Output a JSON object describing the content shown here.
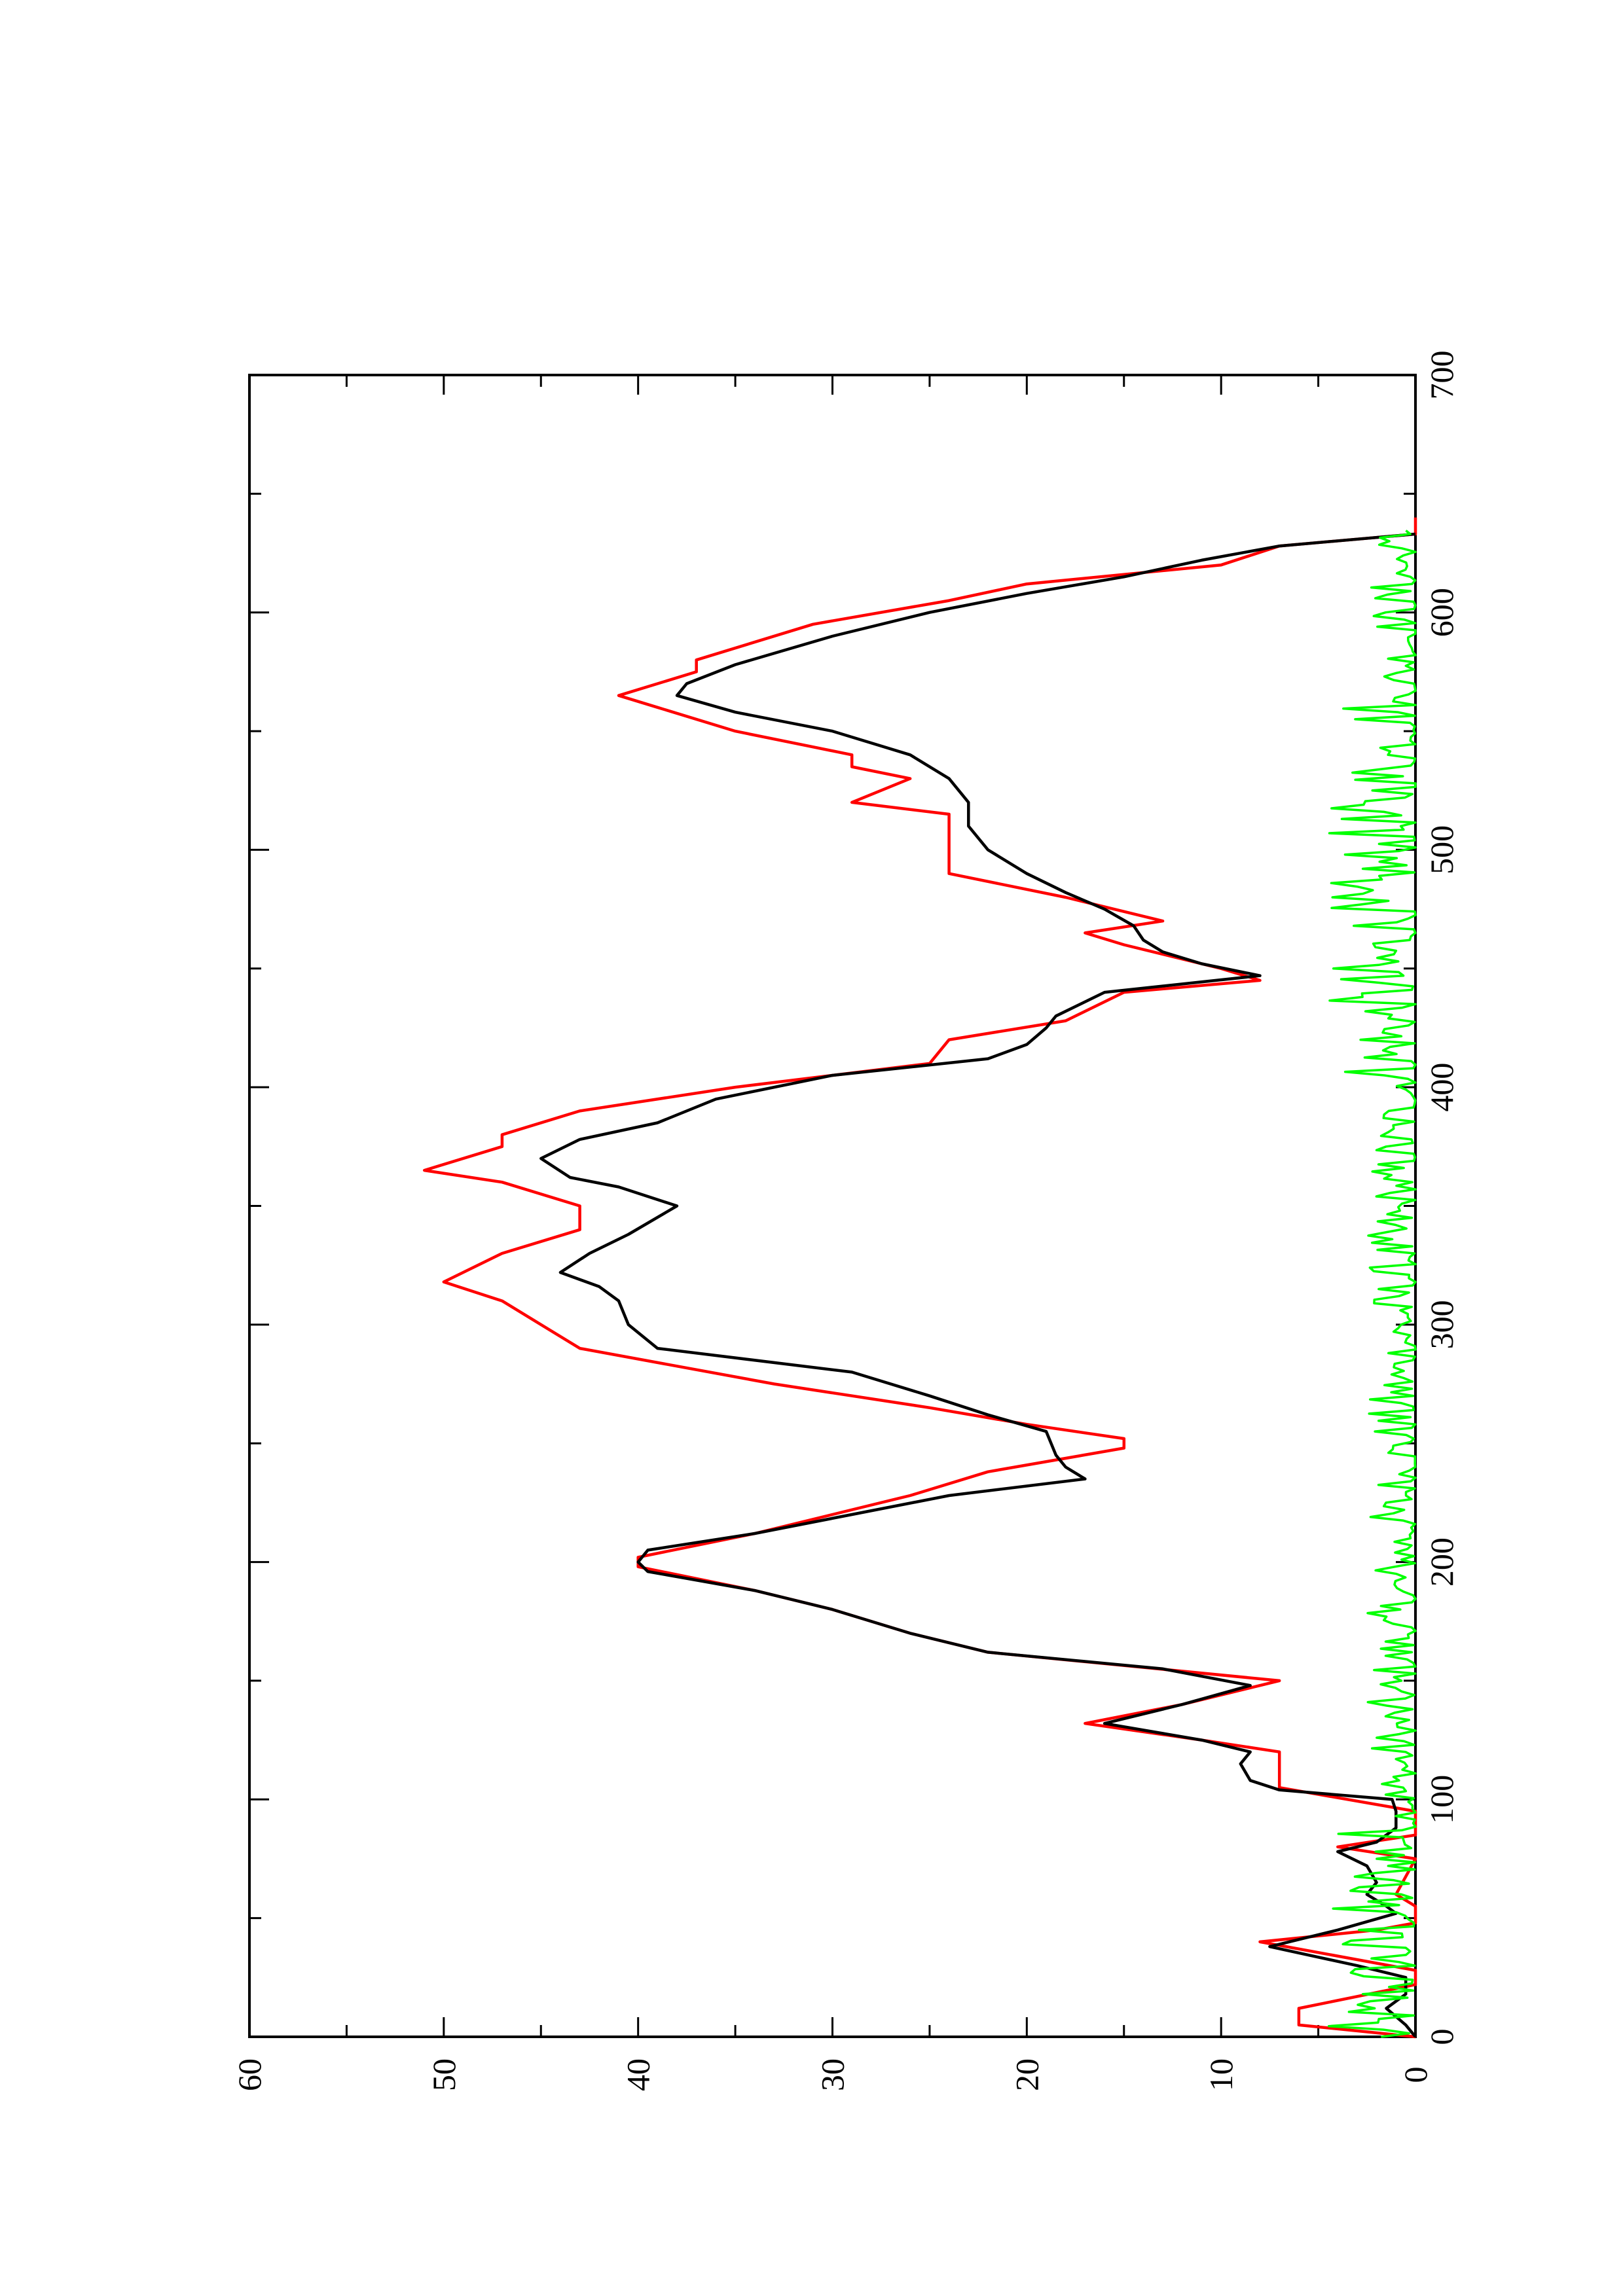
{
  "chart_data": {
    "type": "line",
    "orientation": "rotated 90 degrees counter-clockwise",
    "xlim": [
      0,
      700
    ],
    "ylim": [
      0,
      60
    ],
    "x_ticks": [
      "0",
      "100",
      "200",
      "300",
      "400",
      "500",
      "600",
      "700"
    ],
    "y_ticks": [
      "0",
      "10",
      "20",
      "30",
      "40",
      "50",
      "60"
    ],
    "grid": false,
    "legend": "none",
    "series": [
      {
        "color": "#ff0000",
        "style": "step-line",
        "points": [
          [
            0,
            0
          ],
          [
            5,
            6
          ],
          [
            12,
            6
          ],
          [
            22,
            0
          ],
          [
            28,
            0
          ],
          [
            40,
            8
          ],
          [
            45,
            2
          ],
          [
            48,
            0
          ],
          [
            55,
            0
          ],
          [
            60,
            1
          ],
          [
            75,
            0
          ],
          [
            80,
            4
          ],
          [
            85,
            0
          ],
          [
            95,
            0
          ],
          [
            105,
            7
          ],
          [
            120,
            7
          ],
          [
            125,
            11
          ],
          [
            132,
            17
          ],
          [
            140,
            12
          ],
          [
            150,
            7
          ],
          [
            162,
            22
          ],
          [
            170,
            26
          ],
          [
            180,
            30
          ],
          [
            188,
            34
          ],
          [
            198,
            40
          ],
          [
            202,
            40
          ],
          [
            212,
            34
          ],
          [
            220,
            30
          ],
          [
            228,
            26
          ],
          [
            238,
            22
          ],
          [
            248,
            15
          ],
          [
            252,
            15
          ],
          [
            258,
            20
          ],
          [
            265,
            25
          ],
          [
            275,
            33
          ],
          [
            290,
            43
          ],
          [
            310,
            47
          ],
          [
            318,
            50
          ],
          [
            330,
            47
          ],
          [
            340,
            43
          ],
          [
            350,
            43
          ],
          [
            360,
            47
          ],
          [
            365,
            51
          ],
          [
            375,
            47
          ],
          [
            380,
            47
          ],
          [
            390,
            43
          ],
          [
            400,
            35
          ],
          [
            410,
            25
          ],
          [
            420,
            24
          ],
          [
            428,
            18
          ],
          [
            440,
            15
          ],
          [
            445,
            8
          ],
          [
            450,
            10
          ],
          [
            460,
            15
          ],
          [
            465,
            17
          ],
          [
            470,
            13
          ],
          [
            480,
            18
          ],
          [
            490,
            24
          ],
          [
            515,
            24
          ],
          [
            520,
            29
          ],
          [
            530,
            26
          ],
          [
            535,
            29
          ],
          [
            540,
            29
          ],
          [
            550,
            35
          ],
          [
            560,
            39
          ],
          [
            565,
            41
          ],
          [
            575,
            37
          ],
          [
            580,
            37
          ],
          [
            595,
            31
          ],
          [
            605,
            24
          ],
          [
            612,
            20
          ],
          [
            620,
            10
          ],
          [
            628,
            7
          ],
          [
            633,
            0
          ],
          [
            640,
            0
          ]
        ]
      },
      {
        "color": "#000000",
        "style": "line",
        "points": [
          [
            0,
            0
          ],
          [
            5,
            0.5
          ],
          [
            12,
            1.5
          ],
          [
            18,
            0.5
          ],
          [
            25,
            0.5
          ],
          [
            30,
            3
          ],
          [
            38,
            7.5
          ],
          [
            45,
            4
          ],
          [
            52,
            1
          ],
          [
            55,
            1.5
          ],
          [
            60,
            2.5
          ],
          [
            65,
            2
          ],
          [
            72,
            2.5
          ],
          [
            78,
            4
          ],
          [
            82,
            2
          ],
          [
            88,
            1
          ],
          [
            95,
            1
          ],
          [
            100,
            1.2
          ],
          [
            104,
            7
          ],
          [
            108,
            8.5
          ],
          [
            115,
            9
          ],
          [
            120,
            8.5
          ],
          [
            125,
            11
          ],
          [
            132,
            16
          ],
          [
            140,
            12
          ],
          [
            148,
            8.5
          ],
          [
            155,
            13
          ],
          [
            162,
            22
          ],
          [
            170,
            26
          ],
          [
            180,
            30
          ],
          [
            188,
            34
          ],
          [
            196,
            39.5
          ],
          [
            200,
            40
          ],
          [
            205,
            39.5
          ],
          [
            212,
            34
          ],
          [
            220,
            29
          ],
          [
            228,
            24
          ],
          [
            235,
            17
          ],
          [
            240,
            18
          ],
          [
            245,
            18.5
          ],
          [
            255,
            19
          ],
          [
            262,
            22
          ],
          [
            270,
            25
          ],
          [
            280,
            29
          ],
          [
            290,
            39
          ],
          [
            300,
            40.5
          ],
          [
            310,
            41
          ],
          [
            316,
            42
          ],
          [
            322,
            44
          ],
          [
            330,
            42.5
          ],
          [
            338,
            40.5
          ],
          [
            350,
            38
          ],
          [
            358,
            41
          ],
          [
            362,
            43.5
          ],
          [
            370,
            45
          ],
          [
            378,
            43
          ],
          [
            385,
            39
          ],
          [
            395,
            36
          ],
          [
            405,
            30
          ],
          [
            412,
            22
          ],
          [
            418,
            20
          ],
          [
            425,
            19
          ],
          [
            430,
            18.5
          ],
          [
            440,
            16
          ],
          [
            447,
            8
          ],
          [
            452,
            11
          ],
          [
            457,
            13
          ],
          [
            462,
            14
          ],
          [
            468,
            14.5
          ],
          [
            475,
            16
          ],
          [
            482,
            18
          ],
          [
            490,
            20
          ],
          [
            500,
            22
          ],
          [
            510,
            23
          ],
          [
            520,
            23
          ],
          [
            530,
            24
          ],
          [
            540,
            26
          ],
          [
            550,
            30
          ],
          [
            558,
            35
          ],
          [
            565,
            38
          ],
          [
            570,
            37.5
          ],
          [
            578,
            35
          ],
          [
            590,
            30
          ],
          [
            600,
            25
          ],
          [
            608,
            20
          ],
          [
            615,
            15
          ],
          [
            622,
            11
          ],
          [
            628,
            7
          ],
          [
            633,
            0
          ]
        ]
      },
      {
        "color": "#00ff00",
        "style": "noise",
        "y_range": [
          0,
          4.5
        ],
        "x_range": [
          0,
          635
        ]
      }
    ]
  }
}
